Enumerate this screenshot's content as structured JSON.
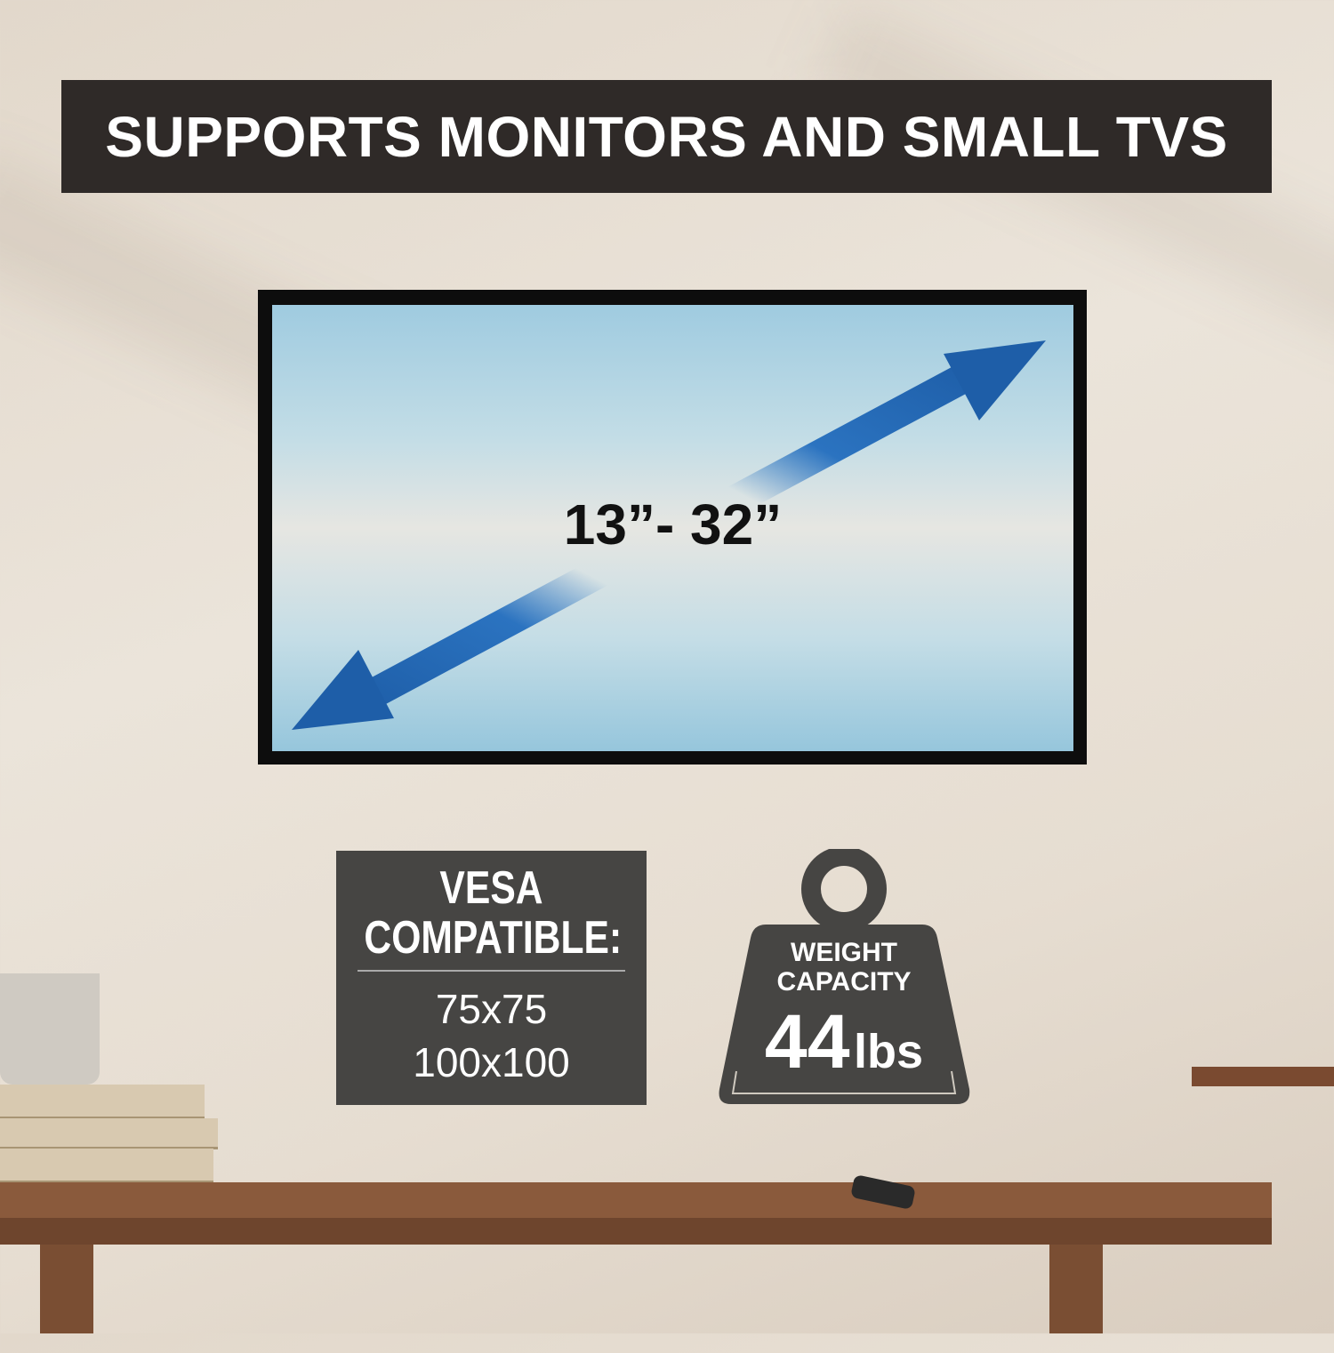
{
  "banner": {
    "title": "SUPPORTS MONITORS AND SMALL TVS"
  },
  "tv": {
    "size_range": "13”- 32”",
    "arrow_color": "#1e5ea8"
  },
  "vesa": {
    "heading_line1": "VESA",
    "heading_line2": "COMPATIBLE:",
    "sizes": [
      "75x75",
      "100x100"
    ]
  },
  "weight": {
    "label_line1": "WEIGHT",
    "label_line2": "CAPACITY",
    "value": "44",
    "unit": "lbs",
    "icon": "weight-icon"
  },
  "colors": {
    "banner": "#2f2a28",
    "panel": "#464543",
    "wall": "#e9e1d6"
  }
}
